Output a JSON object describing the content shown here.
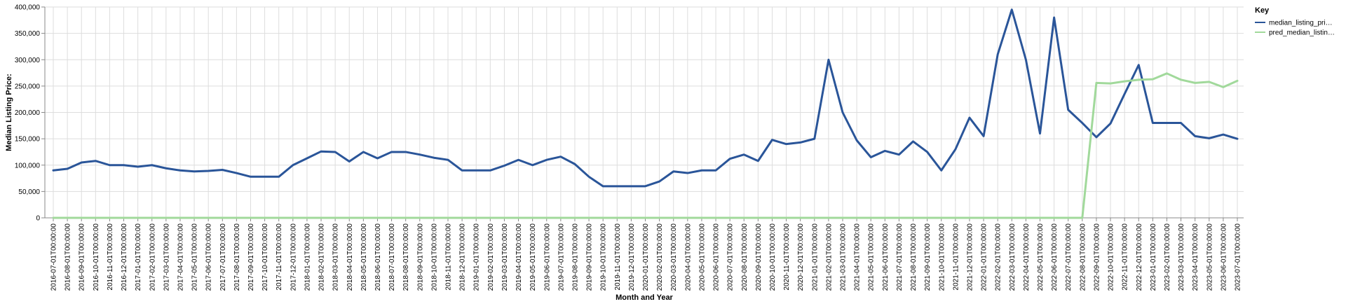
{
  "chart_data": {
    "type": "line",
    "xlabel": "Month and Year",
    "ylabel": "Median Listing Price:",
    "ylim": [
      0,
      400000
    ],
    "yticks": [
      0,
      50000,
      100000,
      150000,
      200000,
      250000,
      300000,
      350000,
      400000
    ],
    "grid": true,
    "legend": {
      "title": "Key",
      "placement": "top-right",
      "entries": [
        "median_listing_pri…",
        "pred_median_listin…"
      ]
    },
    "x": [
      "2016-07-01T00:00:00",
      "2016-08-01T00:00:00",
      "2016-09-01T00:00:00",
      "2016-10-01T00:00:00",
      "2016-11-01T00:00:00",
      "2016-12-01T00:00:00",
      "2017-01-01T00:00:00",
      "2017-02-01T00:00:00",
      "2017-03-01T00:00:00",
      "2017-04-01T00:00:00",
      "2017-05-01T00:00:00",
      "2017-06-01T00:00:00",
      "2017-07-01T00:00:00",
      "2017-08-01T00:00:00",
      "2017-09-01T00:00:00",
      "2017-10-01T00:00:00",
      "2017-11-01T00:00:00",
      "2017-12-01T00:00:00",
      "2018-01-01T00:00:00",
      "2018-02-01T00:00:00",
      "2018-03-01T00:00:00",
      "2018-04-01T00:00:00",
      "2018-05-01T00:00:00",
      "2018-06-01T00:00:00",
      "2018-07-01T00:00:00",
      "2018-08-01T00:00:00",
      "2018-09-01T00:00:00",
      "2018-10-01T00:00:00",
      "2018-11-01T00:00:00",
      "2018-12-01T00:00:00",
      "2019-01-01T00:00:00",
      "2019-02-01T00:00:00",
      "2019-03-01T00:00:00",
      "2019-04-01T00:00:00",
      "2019-05-01T00:00:00",
      "2019-06-01T00:00:00",
      "2019-07-01T00:00:00",
      "2019-08-01T00:00:00",
      "2019-09-01T00:00:00",
      "2019-10-01T00:00:00",
      "2019-11-01T00:00:00",
      "2019-12-01T00:00:00",
      "2020-01-01T00:00:00",
      "2020-02-01T00:00:00",
      "2020-03-01T00:00:00",
      "2020-04-01T00:00:00",
      "2020-05-01T00:00:00",
      "2020-06-01T00:00:00",
      "2020-07-01T00:00:00",
      "2020-08-01T00:00:00",
      "2020-09-01T00:00:00",
      "2020-10-01T00:00:00",
      "2020-11-01T00:00:00",
      "2020-12-01T00:00:00",
      "2021-01-01T00:00:00",
      "2021-02-01T00:00:00",
      "2021-03-01T00:00:00",
      "2021-04-01T00:00:00",
      "2021-05-01T00:00:00",
      "2021-06-01T00:00:00",
      "2021-07-01T00:00:00",
      "2021-08-01T00:00:00",
      "2021-09-01T00:00:00",
      "2021-10-01T00:00:00",
      "2021-11-01T00:00:00",
      "2021-12-01T00:00:00",
      "2022-01-01T00:00:00",
      "2022-02-01T00:00:00",
      "2022-03-01T00:00:00",
      "2022-04-01T00:00:00",
      "2022-05-01T00:00:00",
      "2022-06-01T00:00:00",
      "2022-07-01T00:00:00",
      "2022-08-01T00:00:00",
      "2022-09-01T00:00:00",
      "2022-10-01T00:00:00",
      "2022-11-01T00:00:00",
      "2022-12-01T00:00:00",
      "2023-01-01T00:00:00",
      "2023-02-01T00:00:00",
      "2023-03-01T00:00:00",
      "2023-04-01T00:00:00",
      "2023-05-01T00:00:00",
      "2023-06-01T00:00:00",
      "2023-07-01T00:00:00"
    ],
    "series": [
      {
        "name": "median_listing_pri…",
        "color": "#2a5599",
        "values": [
          90000,
          93000,
          105000,
          108000,
          100000,
          100000,
          97000,
          100000,
          94000,
          90000,
          88000,
          89000,
          91000,
          85000,
          78000,
          78000,
          78000,
          100000,
          113000,
          126000,
          125000,
          107000,
          125000,
          113000,
          125000,
          125000,
          120000,
          114000,
          110000,
          90000,
          90000,
          90000,
          99000,
          110000,
          100000,
          110000,
          116000,
          102000,
          78000,
          60000,
          60000,
          60000,
          60000,
          69000,
          88000,
          85000,
          90000,
          90000,
          112000,
          120000,
          108000,
          148000,
          140000,
          143000,
          150000,
          300000,
          200000,
          147000,
          115000,
          127000,
          120000,
          145000,
          125000,
          90000,
          130000,
          190000,
          155000,
          310000,
          395000,
          300000,
          160000,
          380000,
          205000,
          180000,
          153000,
          179000,
          235000,
          290000,
          180000,
          180000,
          180000,
          155000,
          151000,
          158000,
          150000
        ]
      },
      {
        "name": "pred_median_listin…",
        "color": "#a1d99b",
        "values": [
          0,
          0,
          0,
          0,
          0,
          0,
          0,
          0,
          0,
          0,
          0,
          0,
          0,
          0,
          0,
          0,
          0,
          0,
          0,
          0,
          0,
          0,
          0,
          0,
          0,
          0,
          0,
          0,
          0,
          0,
          0,
          0,
          0,
          0,
          0,
          0,
          0,
          0,
          0,
          0,
          0,
          0,
          0,
          0,
          0,
          0,
          0,
          0,
          0,
          0,
          0,
          0,
          0,
          0,
          0,
          0,
          0,
          0,
          0,
          0,
          0,
          0,
          0,
          0,
          0,
          0,
          0,
          0,
          0,
          0,
          0,
          0,
          0,
          0,
          256000,
          255000,
          259000,
          262000,
          263000,
          274000,
          262000,
          256000,
          258000,
          248000,
          260000
        ]
      }
    ]
  }
}
